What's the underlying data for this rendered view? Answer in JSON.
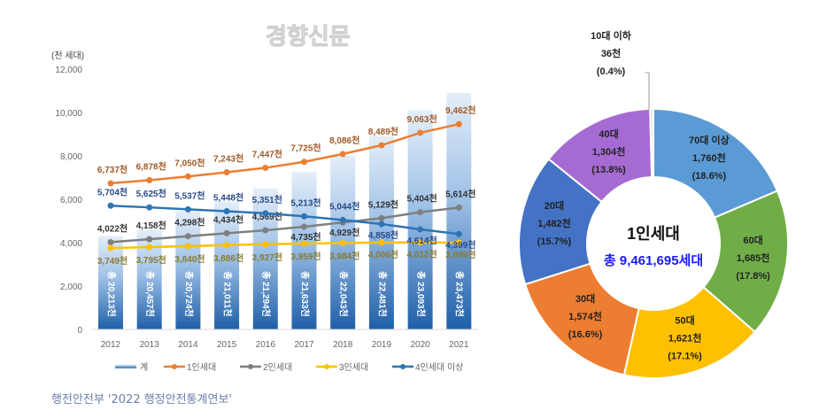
{
  "source": "행전안전부 '2022 행정안전통계연보'",
  "watermark": "경향신문",
  "chart_data": [
    {
      "type": "bar+line",
      "ylabel": "(천 세대)",
      "ylim": [
        0,
        12000
      ],
      "yticks": [
        "0",
        "2,000",
        "4,000",
        "6,000",
        "8,000",
        "10,000",
        "12,000"
      ],
      "categories": [
        "2012",
        "2013",
        "2014",
        "2015",
        "2016",
        "2017",
        "2018",
        "2019",
        "2020",
        "2021"
      ],
      "bar_series": {
        "name": "계",
        "color": "#2e75b6",
        "labels": [
          "총 20,213천",
          "총 20,457천",
          "총 20,724천",
          "총 21,011천",
          "총 21,294천",
          "총 21,633천",
          "총 22,043천",
          "총 22,481천",
          "총 23,093천",
          "총 23,473천"
        ],
        "values": [
          20213,
          20457,
          20724,
          21011,
          21294,
          21633,
          22043,
          22481,
          23093,
          23473
        ],
        "displayed_heights": [
          4300,
          4600,
          5450,
          5900,
          6500,
          7250,
          8000,
          8900,
          10100,
          10900
        ]
      },
      "series": [
        {
          "name": "1인세대",
          "color": "#ed7d31",
          "label_color": "#a05a28",
          "values": [
            6737,
            6878,
            7050,
            7243,
            7447,
            7725,
            8086,
            8489,
            9063,
            9462
          ]
        },
        {
          "name": "2인세대",
          "color": "#7f7f7f",
          "label_color": "#333333",
          "values": [
            4022,
            4158,
            4298,
            4434,
            4569,
            4735,
            4929,
            5129,
            5404,
            5614
          ]
        },
        {
          "name": "3인세대",
          "color": "#ffc000",
          "label_color": "#8a7a30",
          "values": [
            3749,
            3795,
            3840,
            3886,
            3927,
            3959,
            3984,
            4006,
            4012,
            3999
          ]
        },
        {
          "name": "4인세대 이상",
          "color": "#2e75b6",
          "label_color": "#2a4a8a",
          "values": [
            5704,
            5625,
            5537,
            5448,
            5351,
            5213,
            5044,
            4858,
            4614,
            4399
          ]
        }
      ],
      "value_suffix": "천",
      "legend": "bottom"
    },
    {
      "type": "pie",
      "donut": true,
      "center_title": "1인세대",
      "center_subtitle": "총 9,461,695세대",
      "slices": [
        {
          "label": "70대 이상",
          "value": 1760,
          "value_text": "1,760천",
          "pct": "(18.6%)",
          "percent": 18.6,
          "color": "#5b9bd5"
        },
        {
          "label": "60대",
          "value": 1685,
          "value_text": "1,685천",
          "pct": "(17.8%)",
          "percent": 17.8,
          "color": "#70ad47"
        },
        {
          "label": "50대",
          "value": 1621,
          "value_text": "1,621천",
          "pct": "(17.1%)",
          "percent": 17.1,
          "color": "#ffc000"
        },
        {
          "label": "30대",
          "value": 1574,
          "value_text": "1,574천",
          "pct": "(16.6%)",
          "percent": 16.6,
          "color": "#ed7d31"
        },
        {
          "label": "20대",
          "value": 1482,
          "value_text": "1,482천",
          "pct": "(15.7%)",
          "percent": 15.7,
          "color": "#4472c4"
        },
        {
          "label": "40대",
          "value": 1304,
          "value_text": "1,304천",
          "pct": "(13.8%)",
          "percent": 13.8,
          "color": "#a66bd3"
        },
        {
          "label": "10대 이하",
          "value": 36,
          "value_text": "36천",
          "pct": "(0.4%)",
          "percent": 0.4,
          "color": "#e8e8e8"
        }
      ]
    }
  ]
}
